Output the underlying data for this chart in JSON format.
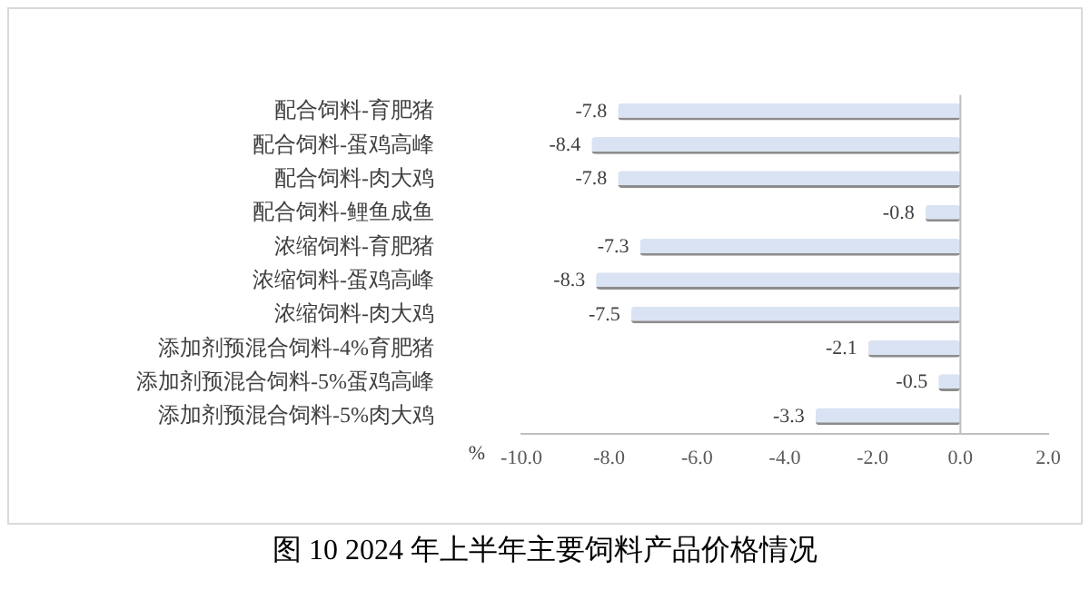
{
  "chart_data": {
    "type": "bar",
    "orientation": "horizontal",
    "title": "图 10   2024 年上半年主要饲料产品价格情况",
    "xlabel": "%",
    "categories": [
      "配合饲料-育肥猪",
      "配合饲料-蛋鸡高峰",
      "配合饲料-肉大鸡",
      "配合饲料-鲤鱼成鱼",
      "浓缩饲料-育肥猪",
      "浓缩饲料-蛋鸡高峰",
      "浓缩饲料-肉大鸡",
      "添加剂预混合饲料-4%育肥猪",
      "添加剂预混合饲料-5%蛋鸡高峰",
      "添加剂预混合饲料-5%肉大鸡"
    ],
    "values": [
      -7.8,
      -8.4,
      -7.8,
      -0.8,
      -7.3,
      -8.3,
      -7.5,
      -2.1,
      -0.5,
      -3.3
    ],
    "value_labels": [
      "-7.8",
      "-8.4",
      "-7.8",
      "-0.8",
      "-7.3",
      "-8.3",
      "-7.5",
      "-2.1",
      "-0.5",
      "-3.3"
    ],
    "color": "#dae3f3",
    "xlim": [
      -10,
      2
    ],
    "xticks": [
      {
        "value": -10,
        "label": "-10.0"
      },
      {
        "value": -8,
        "label": "-8.0"
      },
      {
        "value": -6,
        "label": "-6.0"
      },
      {
        "value": -4,
        "label": "-4.0"
      },
      {
        "value": -2,
        "label": "-2.0"
      },
      {
        "value": 0,
        "label": "0.0"
      },
      {
        "value": 2,
        "label": "2.0"
      }
    ],
    "ref_lines": [
      {
        "axis": "x",
        "value": 0,
        "color": "#bfbfbf"
      }
    ],
    "grid": false,
    "legend": false
  }
}
